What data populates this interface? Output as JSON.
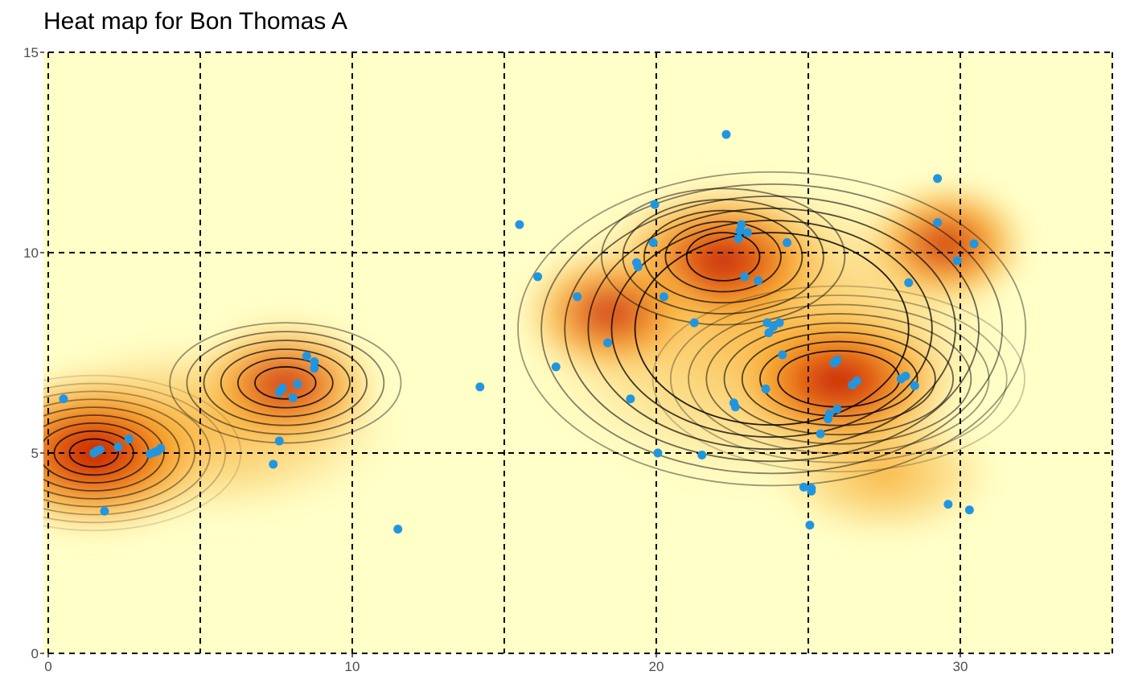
{
  "chart_data": {
    "type": "heatmap",
    "title": "Heat map for Bon Thomas A",
    "xlabel": "",
    "ylabel": "",
    "xlim": [
      0,
      35
    ],
    "ylim": [
      0,
      15
    ],
    "x_ticks": [
      0,
      10,
      20,
      30
    ],
    "y_ticks": [
      0,
      5,
      10,
      15
    ],
    "grid_lines_x": [
      0,
      5,
      10,
      15,
      20,
      25,
      30,
      35
    ],
    "grid_lines_y": [
      0,
      5,
      10,
      15
    ],
    "grid": "dashed black",
    "colors": {
      "low": "#FFFFC8",
      "mid": "#F7A01E",
      "high": "#BD1300",
      "points": "#2196E0",
      "contour": "#000000"
    },
    "density_peaks": [
      {
        "x": 1.5,
        "y": 5.0,
        "intensity": 1.0
      },
      {
        "x": 7.8,
        "y": 6.7,
        "intensity": 0.6
      },
      {
        "x": 22.2,
        "y": 9.8,
        "intensity": 0.85
      },
      {
        "x": 26.0,
        "y": 6.8,
        "intensity": 0.9
      },
      {
        "x": 18.5,
        "y": 8.5,
        "intensity": 0.55
      },
      {
        "x": 29.5,
        "y": 10.2,
        "intensity": 0.45
      }
    ],
    "points": [
      {
        "x": 0.5,
        "y": 6.35
      },
      {
        "x": 1.5,
        "y": 5.0
      },
      {
        "x": 1.6,
        "y": 5.05
      },
      {
        "x": 1.7,
        "y": 5.08
      },
      {
        "x": 2.3,
        "y": 5.15
      },
      {
        "x": 2.65,
        "y": 5.35
      },
      {
        "x": 1.85,
        "y": 3.55
      },
      {
        "x": 3.35,
        "y": 4.98
      },
      {
        "x": 3.5,
        "y": 5.02
      },
      {
        "x": 3.6,
        "y": 5.05
      },
      {
        "x": 3.7,
        "y": 5.12
      },
      {
        "x": 7.4,
        "y": 4.72
      },
      {
        "x": 7.6,
        "y": 5.3
      },
      {
        "x": 7.6,
        "y": 6.52
      },
      {
        "x": 7.7,
        "y": 6.62
      },
      {
        "x": 8.05,
        "y": 6.38
      },
      {
        "x": 8.2,
        "y": 6.72
      },
      {
        "x": 8.5,
        "y": 7.42
      },
      {
        "x": 8.75,
        "y": 7.28
      },
      {
        "x": 8.75,
        "y": 7.12
      },
      {
        "x": 11.5,
        "y": 3.1
      },
      {
        "x": 14.2,
        "y": 6.65
      },
      {
        "x": 15.5,
        "y": 10.7
      },
      {
        "x": 16.1,
        "y": 9.4
      },
      {
        "x": 16.7,
        "y": 7.15
      },
      {
        "x": 17.4,
        "y": 8.9
      },
      {
        "x": 18.4,
        "y": 7.75
      },
      {
        "x": 19.15,
        "y": 6.35
      },
      {
        "x": 19.35,
        "y": 9.75
      },
      {
        "x": 19.4,
        "y": 9.65
      },
      {
        "x": 19.9,
        "y": 10.25
      },
      {
        "x": 19.95,
        "y": 11.2
      },
      {
        "x": 20.05,
        "y": 5.0
      },
      {
        "x": 20.25,
        "y": 8.9
      },
      {
        "x": 21.25,
        "y": 8.25
      },
      {
        "x": 21.5,
        "y": 4.95
      },
      {
        "x": 22.3,
        "y": 12.95
      },
      {
        "x": 22.55,
        "y": 6.25
      },
      {
        "x": 22.6,
        "y": 6.15
      },
      {
        "x": 22.7,
        "y": 10.35
      },
      {
        "x": 22.75,
        "y": 10.55
      },
      {
        "x": 22.8,
        "y": 10.7
      },
      {
        "x": 22.9,
        "y": 9.4
      },
      {
        "x": 23.0,
        "y": 10.5
      },
      {
        "x": 23.35,
        "y": 9.3
      },
      {
        "x": 23.6,
        "y": 6.6
      },
      {
        "x": 23.65,
        "y": 8.25
      },
      {
        "x": 23.7,
        "y": 8.0
      },
      {
        "x": 23.85,
        "y": 8.15
      },
      {
        "x": 24.05,
        "y": 8.25
      },
      {
        "x": 24.15,
        "y": 7.45
      },
      {
        "x": 24.3,
        "y": 10.25
      },
      {
        "x": 24.85,
        "y": 4.15
      },
      {
        "x": 25.05,
        "y": 3.2
      },
      {
        "x": 25.1,
        "y": 4.05
      },
      {
        "x": 25.1,
        "y": 4.12
      },
      {
        "x": 25.4,
        "y": 5.48
      },
      {
        "x": 25.65,
        "y": 5.85
      },
      {
        "x": 25.7,
        "y": 5.98
      },
      {
        "x": 25.85,
        "y": 7.25
      },
      {
        "x": 25.95,
        "y": 7.32
      },
      {
        "x": 25.95,
        "y": 6.1
      },
      {
        "x": 26.45,
        "y": 6.7
      },
      {
        "x": 26.6,
        "y": 6.8
      },
      {
        "x": 28.05,
        "y": 6.85
      },
      {
        "x": 28.2,
        "y": 6.92
      },
      {
        "x": 28.3,
        "y": 9.25
      },
      {
        "x": 28.5,
        "y": 6.68
      },
      {
        "x": 29.25,
        "y": 11.85
      },
      {
        "x": 29.25,
        "y": 10.75
      },
      {
        "x": 29.6,
        "y": 3.72
      },
      {
        "x": 29.9,
        "y": 9.8
      },
      {
        "x": 30.3,
        "y": 3.58
      },
      {
        "x": 30.45,
        "y": 10.22
      }
    ]
  }
}
